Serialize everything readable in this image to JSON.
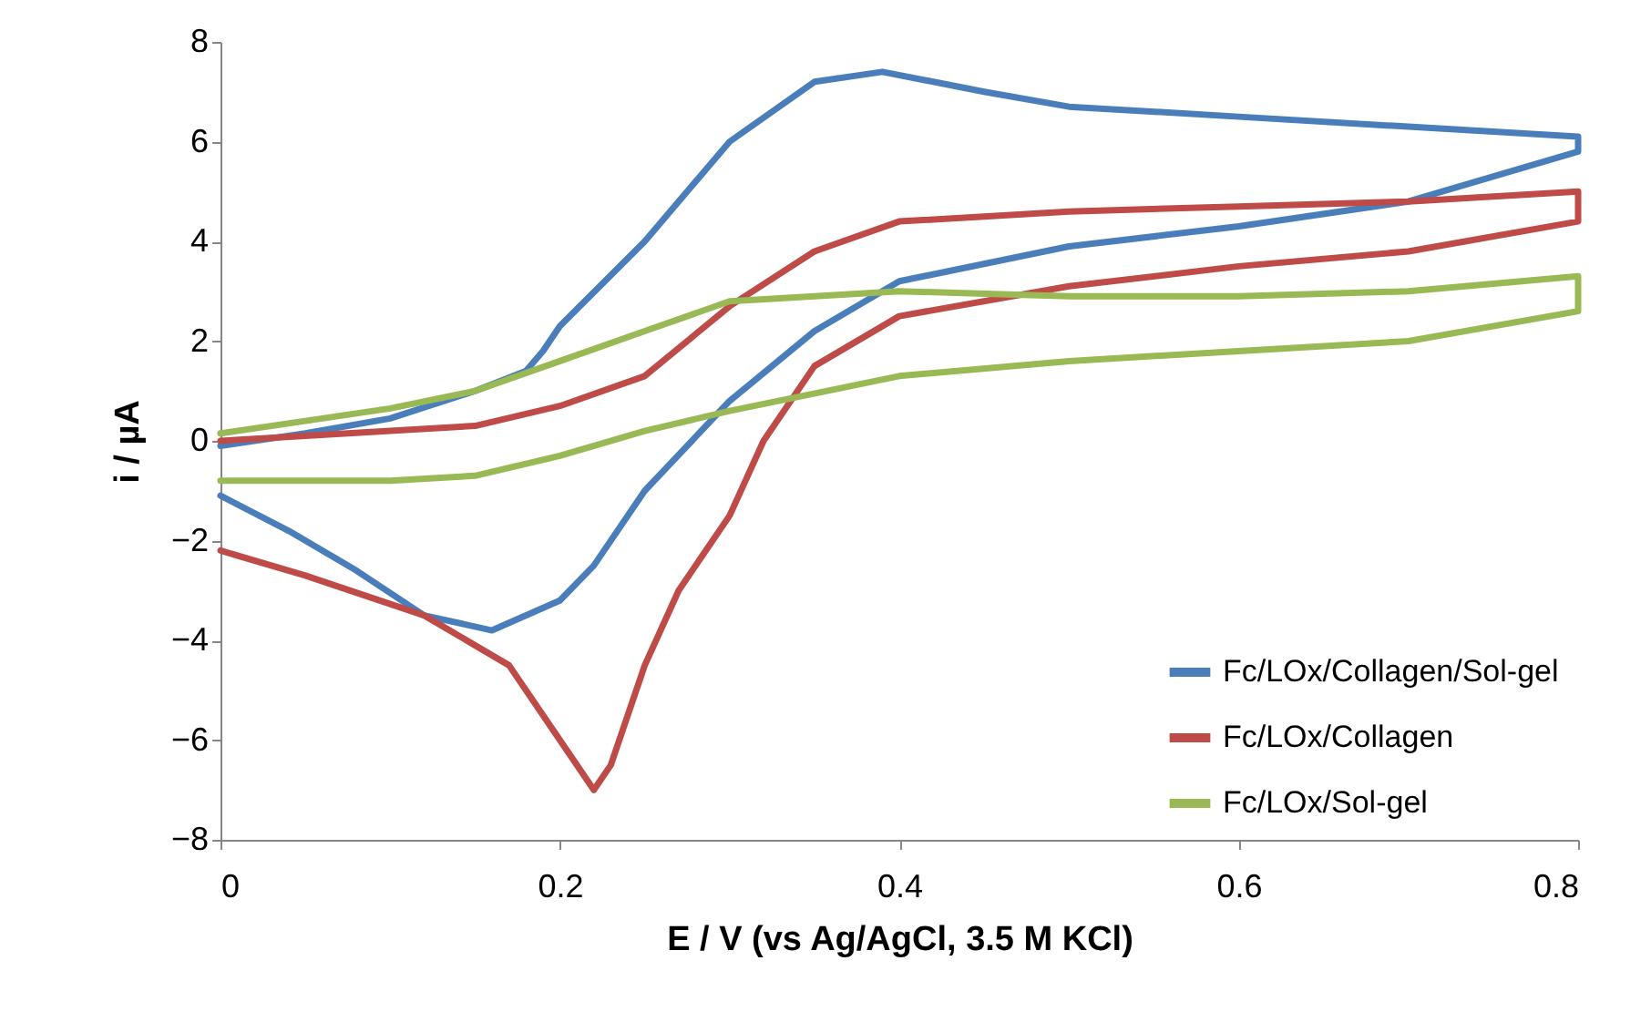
{
  "chart_data": {
    "type": "line",
    "xlabel": "E / V (vs Ag/AgCl, 3.5 M KCl)",
    "ylabel": "i / µA",
    "xlim": [
      0,
      0.8
    ],
    "ylim": [
      -8,
      8
    ],
    "xticks": [
      0,
      0.2,
      0.4,
      0.6,
      0.8
    ],
    "yticks": [
      -8,
      -6,
      -4,
      -2,
      0,
      2,
      4,
      6,
      8
    ],
    "grid": false,
    "legend": "bottom right",
    "series": [
      {
        "name": "Fc/LOx/Collagen/Sol-gel",
        "color": "#4a7ebb",
        "x": [
          0,
          0.05,
          0.1,
          0.15,
          0.18,
          0.19,
          0.2,
          0.25,
          0.3,
          0.35,
          0.39,
          0.45,
          0.5,
          0.6,
          0.7,
          0.8,
          0.8,
          0.7,
          0.6,
          0.5,
          0.4,
          0.35,
          0.3,
          0.25,
          0.22,
          0.2,
          0.16,
          0.12,
          0.08,
          0.04,
          0
        ],
        "values": [
          -0.1,
          0.15,
          0.45,
          1.0,
          1.4,
          1.8,
          2.3,
          4.0,
          6.0,
          7.2,
          7.4,
          7.0,
          6.7,
          6.5,
          6.3,
          6.1,
          5.8,
          4.8,
          4.3,
          3.9,
          3.2,
          2.2,
          0.8,
          -1.0,
          -2.5,
          -3.2,
          -3.8,
          -3.5,
          -2.6,
          -1.8,
          -1.1
        ]
      },
      {
        "name": "Fc/LOx/Collagen",
        "color": "#be4b48",
        "x": [
          0,
          0.05,
          0.1,
          0.15,
          0.2,
          0.25,
          0.3,
          0.35,
          0.4,
          0.5,
          0.6,
          0.7,
          0.8,
          0.8,
          0.7,
          0.6,
          0.5,
          0.4,
          0.35,
          0.32,
          0.3,
          0.27,
          0.25,
          0.23,
          0.22,
          0.2,
          0.17,
          0.12,
          0.05,
          0
        ],
        "values": [
          0,
          0.1,
          0.2,
          0.3,
          0.7,
          1.3,
          2.7,
          3.8,
          4.4,
          4.6,
          4.7,
          4.8,
          5.0,
          4.4,
          3.8,
          3.5,
          3.1,
          2.5,
          1.5,
          0,
          -1.5,
          -3.0,
          -4.5,
          -6.5,
          -7.0,
          -6.0,
          -4.5,
          -3.5,
          -2.7,
          -2.2
        ]
      },
      {
        "name": "Fc/LOx/Sol-gel",
        "color": "#98b954",
        "x": [
          0,
          0.05,
          0.1,
          0.15,
          0.2,
          0.25,
          0.3,
          0.35,
          0.4,
          0.5,
          0.6,
          0.7,
          0.8,
          0.8,
          0.7,
          0.6,
          0.5,
          0.4,
          0.3,
          0.25,
          0.2,
          0.15,
          0.1,
          0.05,
          0
        ],
        "values": [
          0.15,
          0.4,
          0.65,
          1.0,
          1.6,
          2.2,
          2.8,
          2.9,
          3.0,
          2.9,
          2.9,
          3.0,
          3.3,
          2.6,
          2.0,
          1.8,
          1.6,
          1.3,
          0.6,
          0.2,
          -0.3,
          -0.7,
          -0.8,
          -0.8,
          -0.8
        ]
      }
    ]
  }
}
